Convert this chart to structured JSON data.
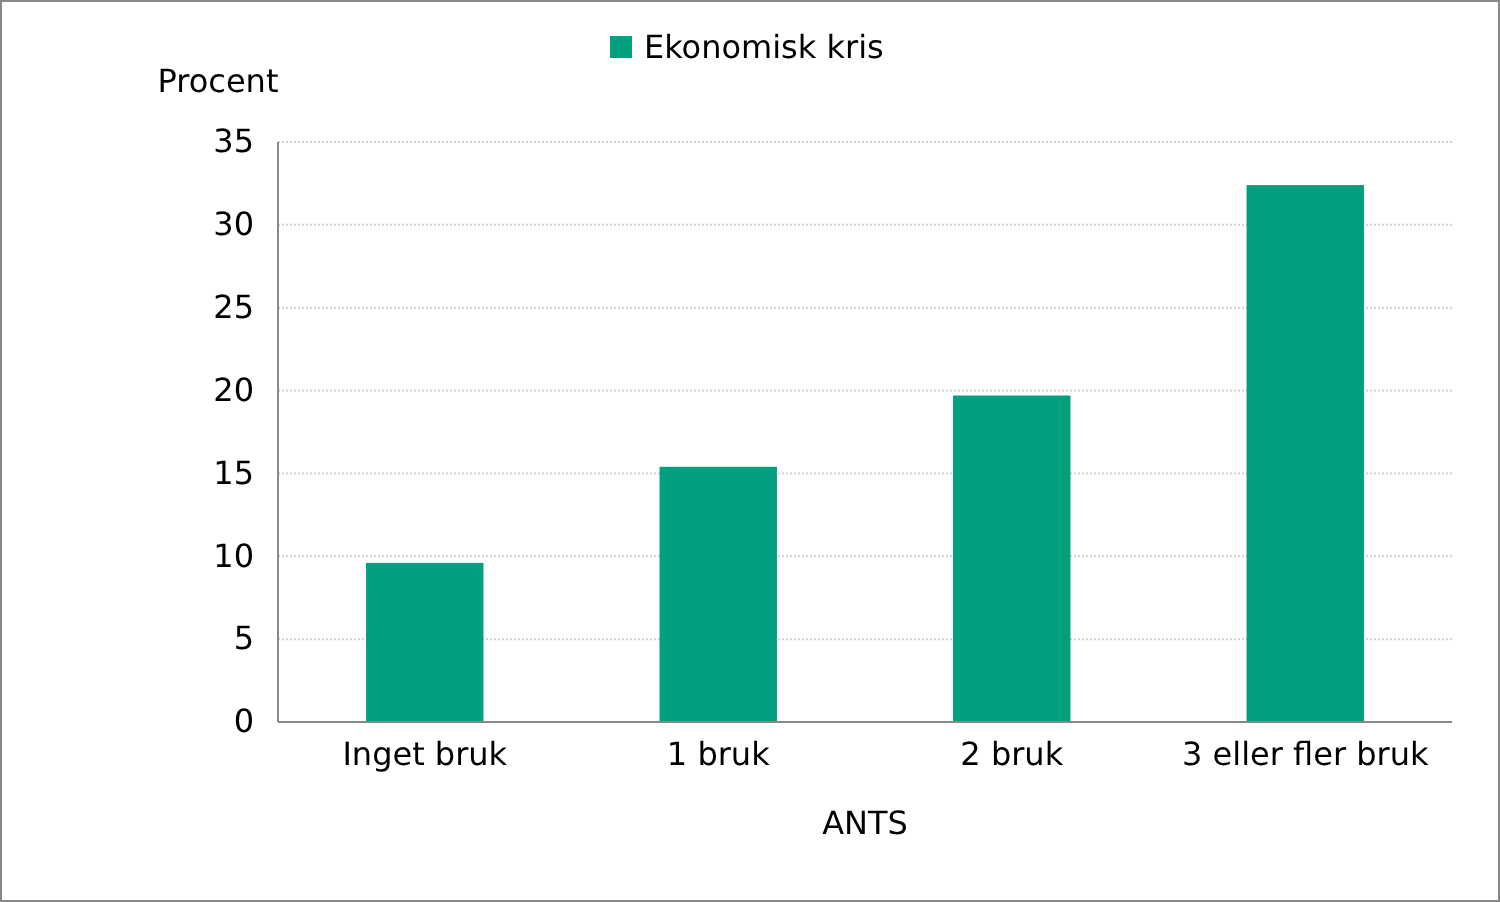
{
  "chart_data": {
    "type": "bar",
    "xlabel": "ANTS",
    "ylabel": "Procent",
    "categories": [
      "Inget bruk",
      "1 bruk",
      "2 bruk",
      "3 eller fler bruk"
    ],
    "series": [
      {
        "name": "Ekonomisk kris",
        "color": "#00a07e",
        "values": [
          9.6,
          15.4,
          19.7,
          32.4
        ]
      }
    ],
    "ylim": [
      0,
      35
    ],
    "yticks": [
      0,
      5,
      10,
      15,
      20,
      25,
      30,
      35
    ],
    "grid": "y",
    "legend": "top"
  }
}
